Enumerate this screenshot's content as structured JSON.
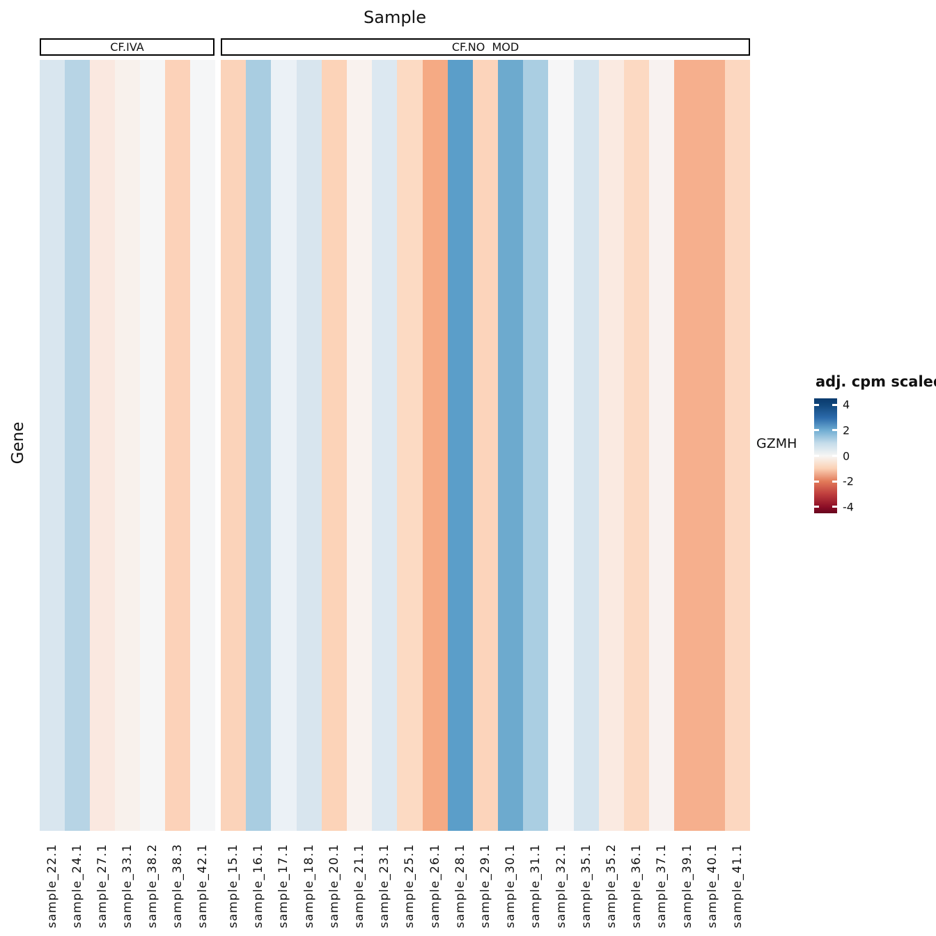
{
  "title": "Sample",
  "y_axis_title": "Gene",
  "row_label": "GZMH",
  "legend": {
    "title": "adj. cpm scaled",
    "ticks": [
      "4",
      "2",
      "0",
      "-2",
      "-4"
    ],
    "tick_values": [
      4,
      2,
      0,
      -2,
      -4
    ],
    "range": [
      -4.5,
      4.5
    ],
    "gradient_stops": [
      [
        0,
        "#0a3a6d"
      ],
      [
        5.6,
        "#11477c"
      ],
      [
        17,
        "#2c6bab"
      ],
      [
        27.8,
        "#6fadd2"
      ],
      [
        39,
        "#c5dcea"
      ],
      [
        50,
        "#f7f6f4"
      ],
      [
        61,
        "#fbd1b5"
      ],
      [
        72.2,
        "#e27a59"
      ],
      [
        83,
        "#c03f3e"
      ],
      [
        94.4,
        "#8c0e26"
      ],
      [
        100,
        "#67051e"
      ]
    ]
  },
  "chart_data": {
    "type": "heatmap",
    "title": "Sample",
    "xlabel": "Sample",
    "ylabel": "Gene",
    "rows": [
      "GZMH"
    ],
    "legend_title": "adj. cpm scaled",
    "scale_ticks": [
      4,
      2,
      0,
      -2,
      -4
    ],
    "scale_range": [
      -4.5,
      4.5
    ],
    "colormap": "RdBu (blue = high, red = low)",
    "groups": [
      {
        "label": "CF.IVA",
        "samples": [
          "sample_22.1",
          "sample_24.1",
          "sample_27.1",
          "sample_33.1",
          "sample_38.2",
          "sample_38.3",
          "sample_42.1"
        ],
        "values": [
          0.7,
          1.3,
          -0.4,
          -0.2,
          0.0,
          -1.1,
          0.1
        ],
        "colors": [
          "#d9e6ef",
          "#b7d4e5",
          "#fae8e0",
          "#f8f1ec",
          "#f6f6f6",
          "#fcd2b9",
          "#f5f6f7"
        ]
      },
      {
        "label": "CF.NO  MOD",
        "samples": [
          "sample_15.1",
          "sample_16.1",
          "sample_17.1",
          "sample_18.1",
          "sample_20.1",
          "sample_21.1",
          "sample_23.1",
          "sample_25.1",
          "sample_26.1",
          "sample_28.1",
          "sample_29.1",
          "sample_30.1",
          "sample_31.1",
          "sample_32.1",
          "sample_35.1",
          "sample_35.2",
          "sample_36.1",
          "sample_37.1",
          "sample_39.1",
          "sample_40.1",
          "sample_41.1"
        ],
        "values": [
          -1.0,
          1.5,
          0.4,
          0.8,
          -1.0,
          -0.15,
          0.65,
          -0.85,
          -1.9,
          2.6,
          -0.95,
          2.35,
          1.45,
          0.0,
          0.8,
          -0.35,
          -0.85,
          -0.1,
          -1.8,
          -1.75,
          -0.9
        ],
        "colors": [
          "#fbd3ba",
          "#a9cde1",
          "#ebf1f6",
          "#d8e5ee",
          "#fcd3b8",
          "#f9f2ee",
          "#dce8f1",
          "#fcdac3",
          "#f5aa84",
          "#5b9ec9",
          "#fcd4bb",
          "#6daace",
          "#aacee2",
          "#f6f6f7",
          "#d5e4ee",
          "#faeae1",
          "#fcd9c2",
          "#f8f2f0",
          "#f6af8d",
          "#f5b08e",
          "#fcd7c0"
        ]
      }
    ]
  }
}
